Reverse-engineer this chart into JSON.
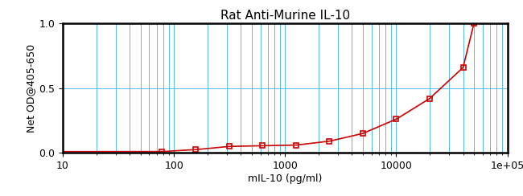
{
  "title": "Rat Anti-Murine IL-10",
  "xlabel": "mIL-10 (pg/ml)",
  "ylabel": "Net OD@405-650",
  "xlim": [
    10,
    100000
  ],
  "ylim": [
    0,
    1
  ],
  "data_x": [
    78,
    156,
    313,
    625,
    1250,
    2500,
    5000,
    10000,
    20000,
    40000,
    50000
  ],
  "data_y": [
    0.01,
    0.025,
    0.05,
    0.055,
    0.06,
    0.09,
    0.15,
    0.26,
    0.42,
    0.66,
    1.0
  ],
  "line_color": "#cc0000",
  "marker_color": "#cc0000",
  "grid_color": "#55bbee",
  "background_color": "#ffffff",
  "yticks": [
    0,
    0.5,
    1
  ],
  "title_fontsize": 11,
  "label_fontsize": 9,
  "tick_fontsize": 9
}
